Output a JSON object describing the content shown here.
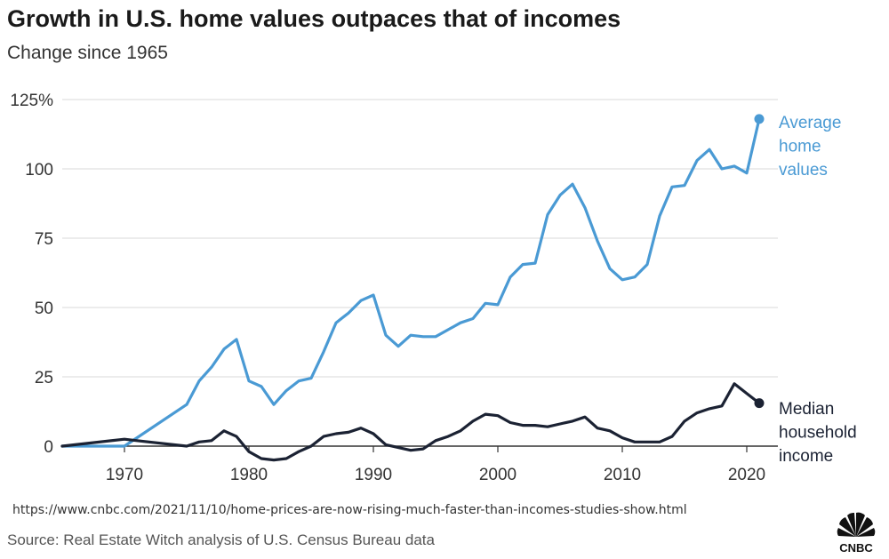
{
  "header": {
    "title": "Growth in U.S. home values outpaces that of incomes",
    "subtitle": "Change since 1965"
  },
  "url_text": "https://www.cnbc.com/2021/11/10/home-prices-are-now-rising-much-faster-than-incomes-studies-show.html",
  "source": "Source: Real Estate Witch analysis of U.S. Census Bureau data",
  "logo": {
    "text": "CNBC",
    "icon": "peacock-logo-icon"
  },
  "colors": {
    "home": "#4a9ad4",
    "income": "#1b2233",
    "grid": "#d9d9d9"
  },
  "chart_data": {
    "type": "line",
    "title": "Growth in U.S. home values outpaces that of incomes",
    "subtitle": "Change since 1965",
    "xlabel": "",
    "ylabel": "",
    "xlim": [
      1965,
      2021
    ],
    "ylim": [
      0,
      125
    ],
    "x_ticks": [
      {
        "value": 1970,
        "label": "1970"
      },
      {
        "value": 1980,
        "label": "1980"
      },
      {
        "value": 1990,
        "label": "1990"
      },
      {
        "value": 2000,
        "label": "2000"
      },
      {
        "value": 2010,
        "label": "2010"
      },
      {
        "value": 2020,
        "label": "2020"
      }
    ],
    "y_ticks": [
      {
        "value": 0,
        "label": "0"
      },
      {
        "value": 25,
        "label": "25"
      },
      {
        "value": 50,
        "label": "50"
      },
      {
        "value": 75,
        "label": "75"
      },
      {
        "value": 100,
        "label": "100"
      },
      {
        "value": 125,
        "label": "125%"
      }
    ],
    "grid": true,
    "series": [
      {
        "name": "Average home values",
        "label_lines": [
          "Average",
          "home",
          "values"
        ],
        "color": "#4a9ad4",
        "points": [
          [
            1965,
            0
          ],
          [
            1970,
            0
          ],
          [
            1975,
            15
          ],
          [
            1976,
            23.5
          ],
          [
            1977,
            28.5
          ],
          [
            1978,
            35
          ],
          [
            1979,
            38.5
          ],
          [
            1980,
            23.5
          ],
          [
            1981,
            21.5
          ],
          [
            1982,
            15
          ],
          [
            1983,
            20
          ],
          [
            1984,
            23.5
          ],
          [
            1985,
            24.5
          ],
          [
            1986,
            34
          ],
          [
            1987,
            44.5
          ],
          [
            1988,
            48
          ],
          [
            1989,
            52.5
          ],
          [
            1990,
            54.5
          ],
          [
            1991,
            40
          ],
          [
            1992,
            36
          ],
          [
            1993,
            40
          ],
          [
            1994,
            39.5
          ],
          [
            1995,
            39.5
          ],
          [
            1996,
            42
          ],
          [
            1997,
            44.5
          ],
          [
            1998,
            46
          ],
          [
            1999,
            51.5
          ],
          [
            2000,
            51
          ],
          [
            2001,
            61
          ],
          [
            2002,
            65.5
          ],
          [
            2003,
            66
          ],
          [
            2004,
            83.5
          ],
          [
            2005,
            90.5
          ],
          [
            2006,
            94.5
          ],
          [
            2007,
            86
          ],
          [
            2008,
            74
          ],
          [
            2009,
            64
          ],
          [
            2010,
            60
          ],
          [
            2011,
            61
          ],
          [
            2012,
            65.5
          ],
          [
            2013,
            83
          ],
          [
            2014,
            93.5
          ],
          [
            2015,
            94
          ],
          [
            2016,
            103
          ],
          [
            2017,
            107
          ],
          [
            2018,
            100
          ],
          [
            2019,
            101
          ],
          [
            2020,
            98.5
          ],
          [
            2021,
            118
          ]
        ]
      },
      {
        "name": "Median household income",
        "label_lines": [
          "Median",
          "household",
          "income"
        ],
        "color": "#1b2233",
        "points": [
          [
            1965,
            0
          ],
          [
            1970,
            2.5
          ],
          [
            1971,
            2
          ],
          [
            1975,
            0
          ],
          [
            1976,
            1.5
          ],
          [
            1977,
            2
          ],
          [
            1978,
            5.5
          ],
          [
            1979,
            3.5
          ],
          [
            1980,
            -2
          ],
          [
            1981,
            -4.5
          ],
          [
            1982,
            -5
          ],
          [
            1983,
            -4.5
          ],
          [
            1984,
            -2
          ],
          [
            1985,
            0
          ],
          [
            1986,
            3.5
          ],
          [
            1987,
            4.5
          ],
          [
            1988,
            5
          ],
          [
            1989,
            6.5
          ],
          [
            1990,
            4.5
          ],
          [
            1991,
            0.5
          ],
          [
            1992,
            -0.5
          ],
          [
            1993,
            -1.5
          ],
          [
            1994,
            -1
          ],
          [
            1995,
            2
          ],
          [
            1996,
            3.5
          ],
          [
            1997,
            5.5
          ],
          [
            1998,
            9
          ],
          [
            1999,
            11.5
          ],
          [
            2000,
            11
          ],
          [
            2001,
            8.5
          ],
          [
            2002,
            7.5
          ],
          [
            2003,
            7.5
          ],
          [
            2004,
            7
          ],
          [
            2005,
            8
          ],
          [
            2006,
            9
          ],
          [
            2007,
            10.5
          ],
          [
            2008,
            6.5
          ],
          [
            2009,
            5.5
          ],
          [
            2010,
            3
          ],
          [
            2011,
            1.5
          ],
          [
            2012,
            1.5
          ],
          [
            2013,
            1.5
          ],
          [
            2014,
            3.5
          ],
          [
            2015,
            9
          ],
          [
            2016,
            12
          ],
          [
            2017,
            13.5
          ],
          [
            2018,
            14.5
          ],
          [
            2019,
            22.5
          ],
          [
            2020,
            19
          ],
          [
            2021,
            15.5
          ]
        ]
      }
    ]
  }
}
